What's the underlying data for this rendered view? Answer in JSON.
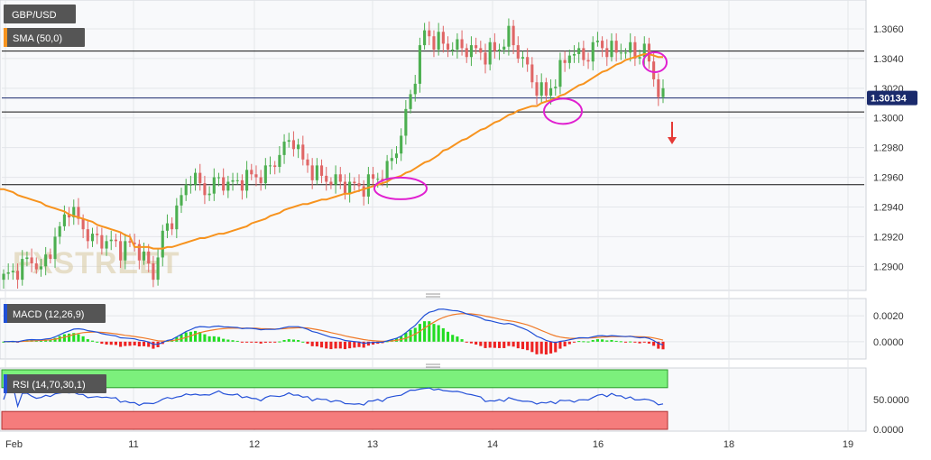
{
  "symbol": "GBP/USD",
  "watermark": "FXSTREET",
  "colors": {
    "up_candle": "#4caf50",
    "down_candle": "#e06666",
    "sma_line": "#f7931e",
    "highlight_circle": "#e020d0",
    "arrow": "#e53935",
    "macd_line": "#1f4fd6",
    "signal_line": "#f07a28",
    "hist_up": "#22dd22",
    "hist_down": "#ee2222",
    "rsi_line": "#2450d8",
    "rsi_overbought": "#7cf07c",
    "rsi_oversold": "#f57c7c",
    "price_badge": "#1a2a6c",
    "tag_bg": "#555555"
  },
  "chart_data": [
    {
      "type": "candlestick",
      "title": "GBP/USD",
      "indicator": "SMA (50,0)",
      "last_price": "1.30134",
      "y_ticks": [
        "1.2900",
        "1.2920",
        "1.2940",
        "1.2960",
        "1.2980",
        "1.3000",
        "1.3020",
        "1.3040",
        "1.3060"
      ],
      "ylim": [
        1.2885,
        1.3077
      ],
      "x_ticks": [
        "Feb",
        "11",
        "12",
        "13",
        "14",
        "16",
        "18",
        "19"
      ],
      "horizontal_levels": [
        1.3045,
        1.30134,
        1.3004,
        1.2955
      ],
      "annotations": [
        "circle near 1.2952 (13 Feb)",
        "circle near 1.3005 (15 Feb)",
        "circle near 1.3037 (16 Feb)",
        "down arrow"
      ],
      "grid": true,
      "ohlc": [],
      "sma": []
    },
    {
      "type": "line",
      "title": "MACD (12,26,9)",
      "y_ticks": [
        "0.0020",
        "0.0000"
      ],
      "ylim": [
        -0.0012,
        0.0032
      ],
      "series": [
        {
          "name": "MACD",
          "values": []
        },
        {
          "name": "Signal",
          "values": []
        },
        {
          "name": "Histogram",
          "values": []
        }
      ]
    },
    {
      "type": "line",
      "title": "RSI (14,70,30,1)",
      "y_ticks": [
        "50.0000",
        "0.0000"
      ],
      "ylim": [
        0,
        100
      ],
      "levels": [
        70,
        30
      ],
      "series": [
        {
          "name": "RSI",
          "values": []
        }
      ]
    }
  ]
}
